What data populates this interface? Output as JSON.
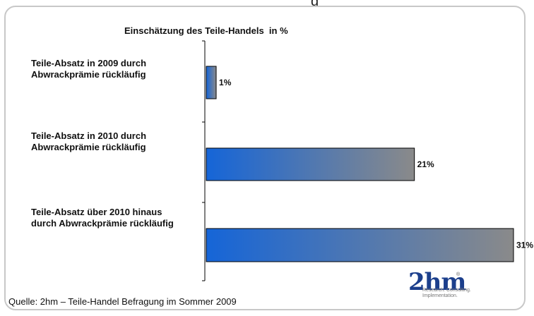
{
  "header_fragment": "g",
  "source": "Quelle: 2hm – Teile-Handel Befragung im Sommer 2009",
  "logo": {
    "main": "2hm",
    "registered": "®",
    "tagline_line1": "Research. Consulting.",
    "tagline_line2": "Implementation."
  },
  "chart_data": {
    "type": "bar",
    "orientation": "horizontal",
    "title": "Einschätzung des Teile-Handels  in %",
    "categories": [
      [
        "Teile-Absatz in 2009 durch",
        "Abwrackprämie rückläufig"
      ],
      [
        "Teile-Absatz in 2010 durch",
        "Abwrackprämie rückläufig"
      ],
      [
        "Teile-Absatz über 2010 hinaus",
        "durch Abwrackprämie rückläufig"
      ]
    ],
    "values": [
      1,
      21,
      31
    ],
    "value_labels": [
      "1%",
      "21%",
      "31%"
    ],
    "xlim": [
      0,
      31
    ],
    "grid": false,
    "legend": "none",
    "bar_gradient": {
      "from": "#1565d8",
      "to": "#8a8a8a"
    }
  }
}
